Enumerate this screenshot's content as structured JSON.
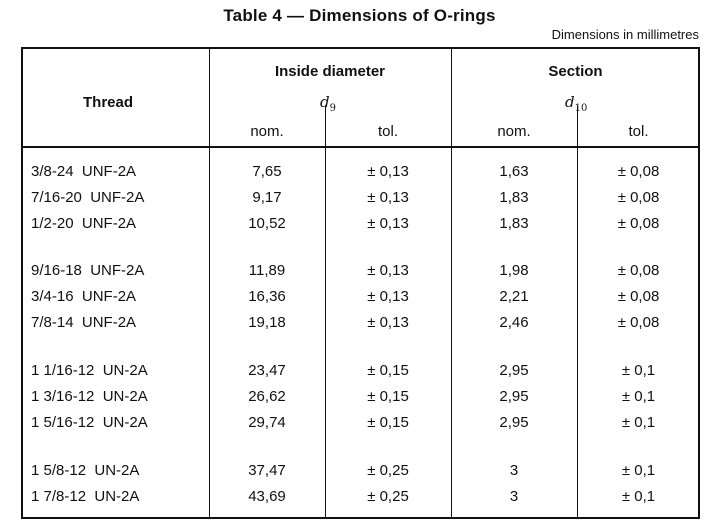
{
  "title": "Table 4 — Dimensions of O-rings",
  "units_note": "Dimensions in millimetres",
  "headers": {
    "thread": "Thread",
    "inside_diameter": "Inside diameter",
    "section": "Section",
    "d9_symbol": "d",
    "d9_sub": "9",
    "d10_symbol": "d",
    "d10_sub": "10",
    "nom": "nom.",
    "tol": "tol."
  },
  "rows": [
    {
      "thread": "3/8-24  UNF-2A",
      "id_nom": "7,65",
      "id_tol": "± 0,13",
      "sec_nom": "1,63",
      "sec_tol": "± 0,08"
    },
    {
      "thread": "7/16-20  UNF-2A",
      "id_nom": "9,17",
      "id_tol": "± 0,13",
      "sec_nom": "1,83",
      "sec_tol": "± 0,08"
    },
    {
      "thread": "1/2-20  UNF-2A",
      "id_nom": "10,52",
      "id_tol": "± 0,13",
      "sec_nom": "1,83",
      "sec_tol": "± 0,08"
    },
    {
      "thread": "9/16-18  UNF-2A",
      "id_nom": "11,89",
      "id_tol": "± 0,13",
      "sec_nom": "1,98",
      "sec_tol": "± 0,08"
    },
    {
      "thread": "3/4-16  UNF-2A",
      "id_nom": "16,36",
      "id_tol": "± 0,13",
      "sec_nom": "2,21",
      "sec_tol": "± 0,08"
    },
    {
      "thread": "7/8-14  UNF-2A",
      "id_nom": "19,18",
      "id_tol": "± 0,13",
      "sec_nom": "2,46",
      "sec_tol": "± 0,08"
    },
    {
      "thread": "1 1/16-12  UN-2A",
      "id_nom": "23,47",
      "id_tol": "± 0,15",
      "sec_nom": "2,95",
      "sec_tol": "± 0,1"
    },
    {
      "thread": "1 3/16-12  UN-2A",
      "id_nom": "26,62",
      "id_tol": "± 0,15",
      "sec_nom": "2,95",
      "sec_tol": "± 0,1"
    },
    {
      "thread": "1 5/16-12  UN-2A",
      "id_nom": "29,74",
      "id_tol": "± 0,15",
      "sec_nom": "2,95",
      "sec_tol": "± 0,1"
    },
    {
      "thread": "1 5/8-12  UN-2A",
      "id_nom": "37,47",
      "id_tol": "± 0,25",
      "sec_nom": "3",
      "sec_tol": "± 0,1"
    },
    {
      "thread": "1 7/8-12  UN-2A",
      "id_nom": "43,69",
      "id_tol": "± 0,25",
      "sec_nom": "3",
      "sec_tol": "± 0,1"
    }
  ]
}
